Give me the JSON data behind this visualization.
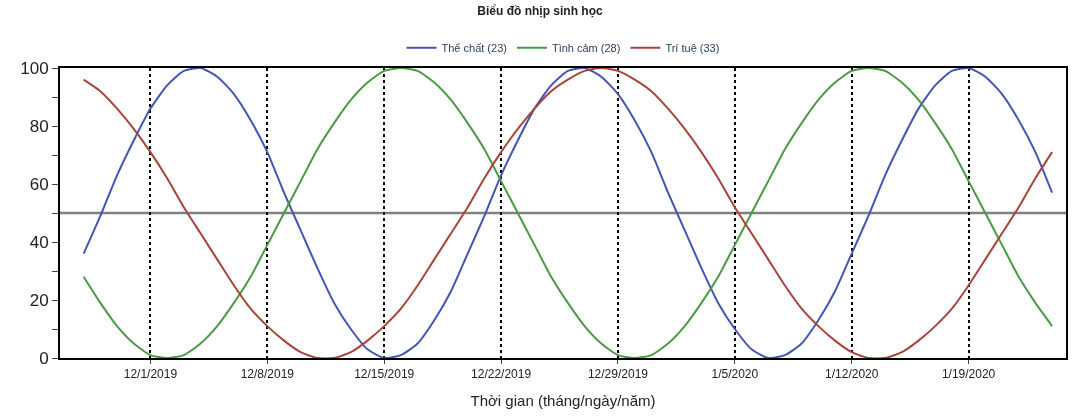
{
  "chart_data": {
    "type": "line",
    "title": "Biểu đồ nhịp sinh học",
    "xlabel": "Thời gian (tháng/ngày/năm)",
    "x": [
      "2019-11-27",
      "2019-11-28",
      "2019-11-29",
      "2019-11-30",
      "2019-12-01",
      "2019-12-02",
      "2019-12-03",
      "2019-12-04",
      "2019-12-05",
      "2019-12-06",
      "2019-12-07",
      "2019-12-08",
      "2019-12-09",
      "2019-12-10",
      "2019-12-11",
      "2019-12-12",
      "2019-12-13",
      "2019-12-14",
      "2019-12-15",
      "2019-12-16",
      "2019-12-17",
      "2019-12-18",
      "2019-12-19",
      "2019-12-20",
      "2019-12-21",
      "2019-12-22",
      "2019-12-23",
      "2019-12-24",
      "2019-12-25",
      "2019-12-26",
      "2019-12-27",
      "2019-12-28",
      "2019-12-29",
      "2019-12-30",
      "2019-12-31",
      "2020-01-01",
      "2020-01-02",
      "2020-01-03",
      "2020-01-04",
      "2020-01-05",
      "2020-01-06",
      "2020-01-07",
      "2020-01-08",
      "2020-01-09",
      "2020-01-10",
      "2020-01-11",
      "2020-01-12",
      "2020-01-13",
      "2020-01-14",
      "2020-01-15",
      "2020-01-16",
      "2020-01-17",
      "2020-01-18",
      "2020-01-19",
      "2020-01-20",
      "2020-01-21",
      "2020-01-22",
      "2020-01-23",
      "2020-01-24"
    ],
    "series": [
      {
        "name": "Thể chất (23)",
        "color": "#4455b4",
        "values": [
          36,
          49,
          63,
          75,
          86,
          94,
          99,
          100,
          97,
          91,
          82,
          71,
          57,
          44,
          31,
          19,
          10,
          3,
          0,
          1,
          5,
          13,
          23,
          36,
          49,
          63,
          75,
          86,
          94,
          99,
          100,
          97,
          91,
          82,
          71,
          57,
          44,
          31,
          19,
          10,
          3,
          0,
          1,
          5,
          13,
          23,
          36,
          49,
          63,
          75,
          86,
          94,
          99,
          100,
          97,
          91,
          82,
          71,
          57
        ]
      },
      {
        "name": "Tình cảm (28)",
        "color": "#4a9a44",
        "values": [
          28,
          19,
          11,
          5,
          1,
          0,
          1,
          5,
          11,
          19,
          28,
          39,
          50,
          61,
          72,
          81,
          89,
          95,
          99,
          100,
          99,
          95,
          89,
          81,
          72,
          61,
          50,
          39,
          28,
          19,
          11,
          5,
          1,
          0,
          1,
          5,
          11,
          19,
          28,
          39,
          50,
          61,
          72,
          81,
          89,
          95,
          99,
          100,
          99,
          95,
          89,
          81,
          72,
          61,
          50,
          39,
          28,
          19,
          11
        ]
      },
      {
        "name": "Trí tuệ (33)",
        "color": "#a8443c",
        "values": [
          96,
          92,
          86,
          79,
          71,
          62,
          52,
          43,
          34,
          25,
          17,
          11,
          6,
          2,
          0,
          0,
          2,
          6,
          11,
          17,
          25,
          34,
          43,
          52,
          62,
          71,
          79,
          86,
          92,
          96,
          99,
          100,
          99,
          96,
          92,
          86,
          79,
          71,
          62,
          52,
          43,
          34,
          25,
          17,
          11,
          6,
          2,
          0,
          0,
          2,
          6,
          11,
          17,
          25,
          34,
          43,
          52,
          62,
          71
        ]
      }
    ],
    "xlim": [
      "2019-11-25T14:00",
      "2020-01-24T20:00"
    ],
    "xticks": [
      {
        "value": "2019-12-01",
        "label": "12/1/2019"
      },
      {
        "value": "2019-12-08",
        "label": "12/8/2019"
      },
      {
        "value": "2019-12-15",
        "label": "12/15/2019"
      },
      {
        "value": "2019-12-22",
        "label": "12/22/2019"
      },
      {
        "value": "2019-12-29",
        "label": "12/29/2019"
      },
      {
        "value": "2020-01-05",
        "label": "1/5/2020"
      },
      {
        "value": "2020-01-12",
        "label": "1/12/2020"
      },
      {
        "value": "2020-01-19",
        "label": "1/19/2020"
      }
    ],
    "ylim": [
      0,
      100
    ],
    "yticks": [
      0,
      {
        "value": 10,
        "label": null
      },
      20,
      {
        "value": 30,
        "label": null
      },
      40,
      {
        "value": 50,
        "label": null
      },
      60,
      {
        "value": 70,
        "label": null
      },
      80,
      {
        "value": 90,
        "label": null
      },
      100
    ],
    "ref_lines": [
      {
        "axis": "y",
        "value": 50,
        "color": "#808080"
      }
    ],
    "grid": "x",
    "legend": "top",
    "marker": "none",
    "line_style": "solid"
  }
}
